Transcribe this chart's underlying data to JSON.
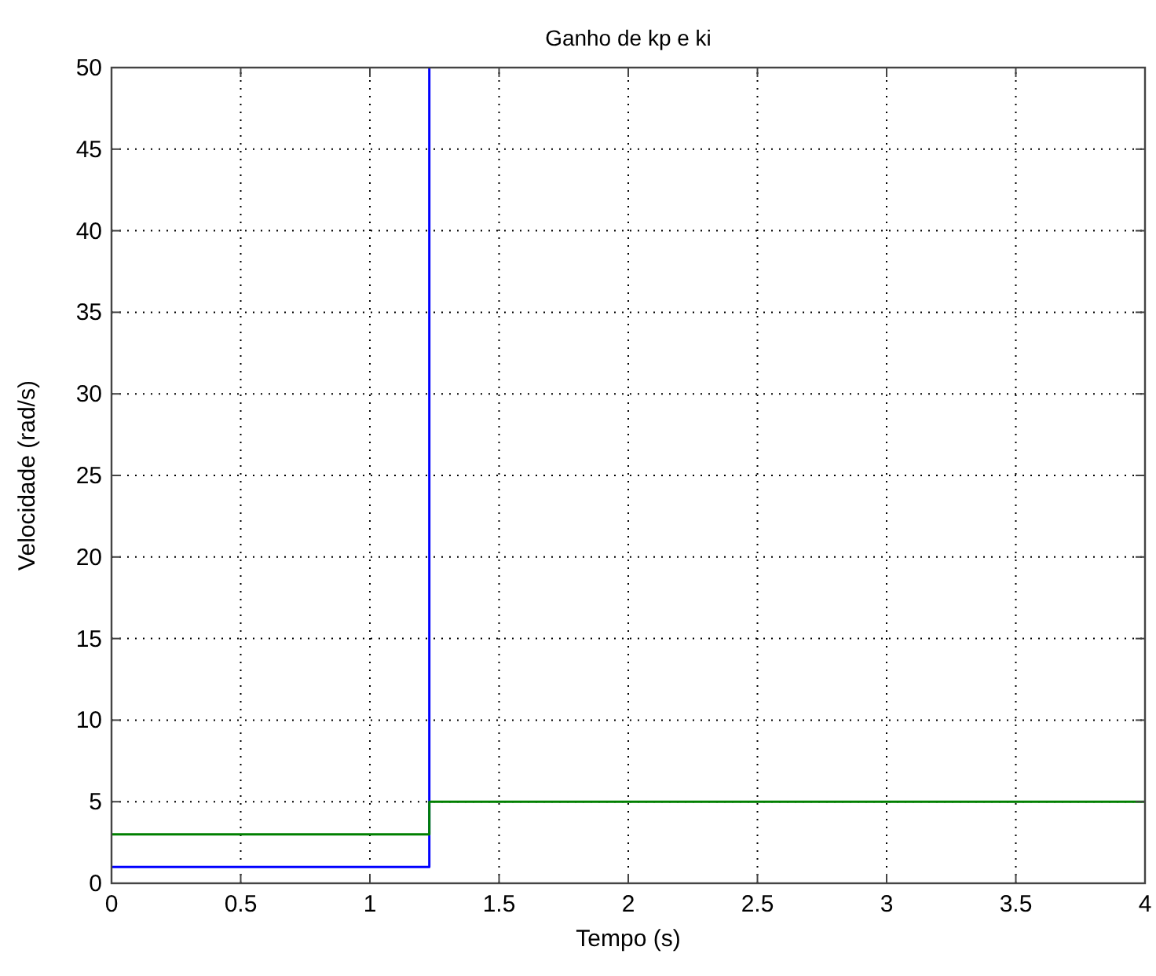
{
  "chart_data": {
    "type": "line",
    "title": "Ganho de kp e ki",
    "xlabel": "Tempo (s)",
    "ylabel": "Velocidade (rad/s)",
    "xlim": [
      0,
      4
    ],
    "xticks": [
      0,
      0.5,
      1,
      1.5,
      2,
      2.5,
      3,
      3.5,
      4
    ],
    "ylim": [
      0,
      50
    ],
    "yticks": [
      0,
      5,
      10,
      15,
      20,
      25,
      30,
      35,
      40,
      45,
      50
    ],
    "grid": true,
    "series": [
      {
        "color": "#0000ff",
        "x": [
          0,
          1.23,
          1.23
        ],
        "values": [
          1,
          1,
          50
        ]
      },
      {
        "color": "#008000",
        "x": [
          0,
          1.23,
          1.23,
          4
        ],
        "values": [
          3,
          3,
          5,
          5
        ]
      }
    ]
  }
}
